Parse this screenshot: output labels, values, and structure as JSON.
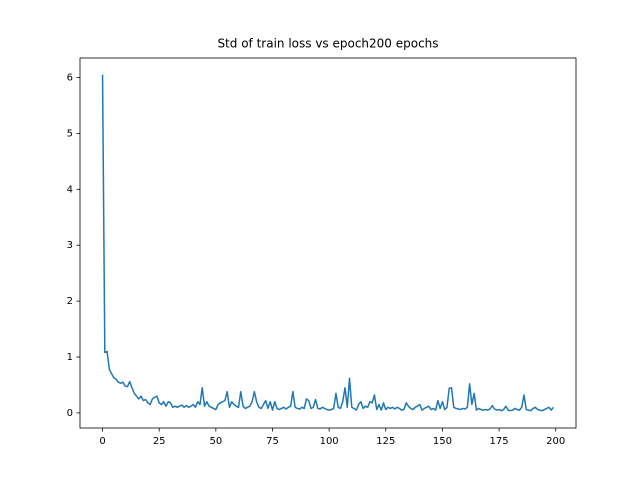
{
  "chart_data": {
    "type": "line",
    "title": "Std of train loss vs epoch200 epochs",
    "x": [
      0,
      1,
      2,
      3,
      4,
      5,
      6,
      7,
      8,
      9,
      10,
      11,
      12,
      13,
      14,
      15,
      16,
      17,
      18,
      19,
      20,
      21,
      22,
      23,
      24,
      25,
      26,
      27,
      28,
      29,
      30,
      31,
      32,
      33,
      34,
      35,
      36,
      37,
      38,
      39,
      40,
      41,
      42,
      43,
      44,
      45,
      46,
      47,
      48,
      49,
      50,
      51,
      52,
      53,
      54,
      55,
      56,
      57,
      58,
      59,
      60,
      61,
      62,
      63,
      64,
      65,
      66,
      67,
      68,
      69,
      70,
      71,
      72,
      73,
      74,
      75,
      76,
      77,
      78,
      79,
      80,
      81,
      82,
      83,
      84,
      85,
      86,
      87,
      88,
      89,
      90,
      91,
      92,
      93,
      94,
      95,
      96,
      97,
      98,
      99,
      100,
      101,
      102,
      103,
      104,
      105,
      106,
      107,
      108,
      109,
      110,
      111,
      112,
      113,
      114,
      115,
      116,
      117,
      118,
      119,
      120,
      121,
      122,
      123,
      124,
      125,
      126,
      127,
      128,
      129,
      130,
      131,
      132,
      133,
      134,
      135,
      136,
      137,
      138,
      139,
      140,
      141,
      142,
      143,
      144,
      145,
      146,
      147,
      148,
      149,
      150,
      151,
      152,
      153,
      154,
      155,
      156,
      157,
      158,
      159,
      160,
      161,
      162,
      163,
      164,
      165,
      166,
      167,
      168,
      169,
      170,
      171,
      172,
      173,
      174,
      175,
      176,
      177,
      178,
      179,
      180,
      181,
      182,
      183,
      184,
      185,
      186,
      187,
      188,
      189,
      190,
      191,
      192,
      193,
      194,
      195,
      196,
      197,
      198,
      199
    ],
    "values": [
      6.05,
      1.08,
      1.1,
      0.78,
      0.7,
      0.63,
      0.6,
      0.55,
      0.53,
      0.55,
      0.48,
      0.47,
      0.56,
      0.45,
      0.35,
      0.3,
      0.25,
      0.3,
      0.22,
      0.24,
      0.18,
      0.15,
      0.25,
      0.28,
      0.3,
      0.18,
      0.15,
      0.2,
      0.12,
      0.2,
      0.18,
      0.1,
      0.12,
      0.1,
      0.12,
      0.14,
      0.1,
      0.13,
      0.1,
      0.12,
      0.15,
      0.1,
      0.2,
      0.15,
      0.45,
      0.12,
      0.2,
      0.12,
      0.1,
      0.08,
      0.06,
      0.15,
      0.18,
      0.2,
      0.22,
      0.38,
      0.1,
      0.2,
      0.15,
      0.12,
      0.1,
      0.38,
      0.12,
      0.08,
      0.1,
      0.12,
      0.2,
      0.38,
      0.2,
      0.1,
      0.08,
      0.15,
      0.22,
      0.08,
      0.2,
      0.05,
      0.2,
      0.08,
      0.06,
      0.08,
      0.1,
      0.07,
      0.1,
      0.12,
      0.38,
      0.1,
      0.08,
      0.07,
      0.1,
      0.08,
      0.25,
      0.22,
      0.08,
      0.1,
      0.24,
      0.08,
      0.07,
      0.1,
      0.08,
      0.06,
      0.05,
      0.06,
      0.08,
      0.35,
      0.1,
      0.08,
      0.2,
      0.45,
      0.1,
      0.62,
      0.1,
      0.08,
      0.05,
      0.15,
      0.2,
      0.08,
      0.12,
      0.1,
      0.2,
      0.18,
      0.32,
      0.06,
      0.15,
      0.05,
      0.18,
      0.06,
      0.1,
      0.08,
      0.1,
      0.07,
      0.1,
      0.08,
      0.05,
      0.06,
      0.18,
      0.12,
      0.08,
      0.06,
      0.1,
      0.12,
      0.15,
      0.05,
      0.08,
      0.1,
      0.12,
      0.06,
      0.08,
      0.05,
      0.22,
      0.08,
      0.2,
      0.06,
      0.1,
      0.44,
      0.45,
      0.1,
      0.08,
      0.07,
      0.06,
      0.08,
      0.07,
      0.1,
      0.52,
      0.15,
      0.35,
      0.05,
      0.08,
      0.06,
      0.05,
      0.06,
      0.05,
      0.07,
      0.13,
      0.07,
      0.05,
      0.06,
      0.04,
      0.06,
      0.12,
      0.05,
      0.04,
      0.05,
      0.08,
      0.06,
      0.05,
      0.1,
      0.32,
      0.06,
      0.05,
      0.04,
      0.08,
      0.1,
      0.06,
      0.05,
      0.04,
      0.06,
      0.08,
      0.1,
      0.05,
      0.1
    ],
    "color": "#1f77b4",
    "xlim": [
      -9.95,
      208.95
    ],
    "xticks": [
      0,
      25,
      50,
      75,
      100,
      125,
      150,
      175,
      200
    ],
    "ylim": [
      -0.27,
      6.35
    ],
    "yticks": [
      0,
      1,
      2,
      3,
      4,
      5,
      6
    ]
  }
}
